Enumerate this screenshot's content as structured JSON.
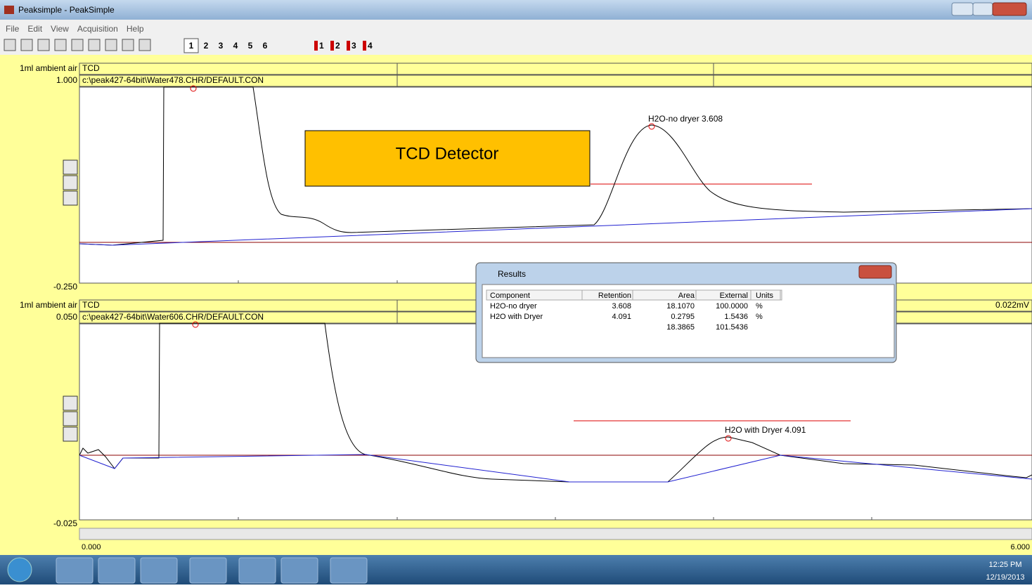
{
  "window": {
    "title": "Peaksimple - PeakSimple"
  },
  "menu": [
    "File",
    "Edit",
    "View",
    "Acquisition",
    "Help"
  ],
  "toolbar": {
    "channels": [
      "1",
      "2",
      "3",
      "4",
      "5",
      "6"
    ],
    "detectors": [
      "1",
      "2",
      "3",
      "4"
    ]
  },
  "channels": [
    {
      "sample": "1ml ambient air",
      "detector": "TCD",
      "y_max": "1.000",
      "file": "c:\\peak427-64bit\\Water478.CHR/DEFAULT.CON",
      "y_min": "-0.250",
      "peak_label": "H2O-no dryer 3.608",
      "annotation": "TCD Detector"
    },
    {
      "sample": "1ml ambient air",
      "detector": "TCD",
      "y_max": "0.050",
      "file": "c:\\peak427-64bit\\Water606.CHR/DEFAULT.CON",
      "y_min": "-0.025",
      "peak_label": "H2O with Dryer 4.091",
      "signal": "0.022mV"
    }
  ],
  "x_axis": {
    "start": "0.000",
    "end": "6.000"
  },
  "results": {
    "title": "Results",
    "headers": [
      "Component",
      "Retention",
      "Area",
      "External",
      "Units"
    ],
    "rows": [
      [
        "H2O-no dryer",
        "3.608",
        "18.1070",
        "100.0000",
        "%"
      ],
      [
        "H2O with Dryer",
        "4.091",
        "0.2795",
        "1.5436",
        "%"
      ]
    ],
    "totals": {
      "area": "18.3865",
      "external": "101.5436"
    }
  },
  "taskbar": {
    "time": "12:25 PM",
    "date": "12/19/2013"
  }
}
